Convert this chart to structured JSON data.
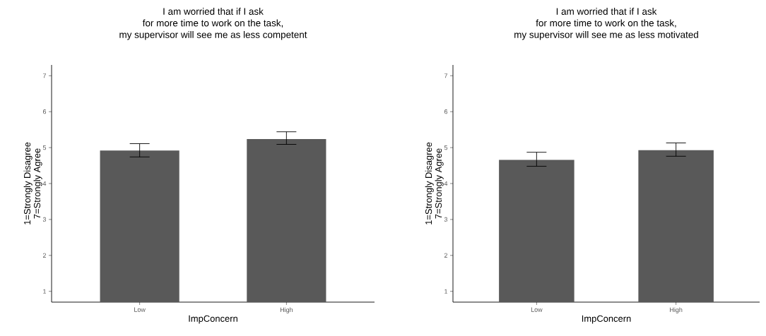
{
  "chart_data": [
    {
      "type": "bar",
      "title": "I am worried that if I ask\nfor more time to work on the task,\nmy supervisor will see me as less competent",
      "xlabel": "ImpConcern",
      "ylabel": "1=Strongly Disagree\n7=Strongly Agree",
      "categories": [
        "Low",
        "High"
      ],
      "values": [
        4.92,
        5.24
      ],
      "errors": [
        [
          4.74,
          5.11
        ],
        [
          5.09,
          5.44
        ]
      ],
      "color": "#595959",
      "ylim": [
        0.7,
        7.3
      ],
      "yticks": [
        1,
        2,
        3,
        4,
        5,
        6,
        7
      ]
    },
    {
      "type": "bar",
      "title": "I am worried that if I ask\nfor more time to work on the task,\nmy supervisor will see me as less motivated",
      "xlabel": "ImpConcern",
      "ylabel": "1=Strongly Disagree\n7=Strongly Agree",
      "categories": [
        "Low",
        "High"
      ],
      "values": [
        4.66,
        4.93
      ],
      "errors": [
        [
          4.48,
          4.87
        ],
        [
          4.76,
          5.13
        ]
      ],
      "color": "#595959",
      "ylim": [
        0.7,
        7.3
      ],
      "yticks": [
        1,
        2,
        3,
        4,
        5,
        6,
        7
      ]
    }
  ]
}
